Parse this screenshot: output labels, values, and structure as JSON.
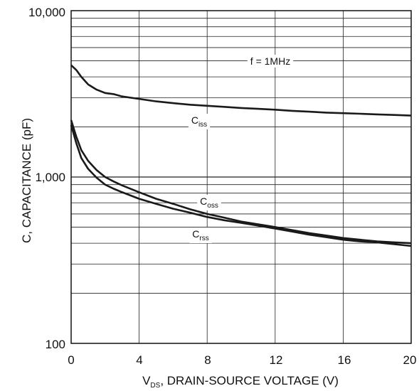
{
  "chart_data": {
    "type": "line",
    "title": "",
    "xlabel_main": "V",
    "xlabel_sub": "DS",
    "xlabel_rest": ", DRAIN-SOURCE VOLTAGE (V)",
    "ylabel": "C, CAPACITANCE (pF)",
    "xlim": [
      0,
      20
    ],
    "ylim": [
      100,
      10000
    ],
    "y_scale": "log",
    "grid": true,
    "x_ticks": [
      0,
      4,
      8,
      12,
      16,
      20
    ],
    "x_tick_labels": [
      "0",
      "4",
      "8",
      "12",
      "16",
      "20"
    ],
    "y_ticks": [
      100,
      1000,
      10000
    ],
    "y_tick_labels": [
      "100",
      "1,000",
      "10,000"
    ],
    "annotation": "f = 1MHz",
    "series": [
      {
        "name_main": "C",
        "name_sub": "iss",
        "color": "#1a1a1a",
        "x": [
          0,
          0.3,
          0.6,
          1,
          1.5,
          2,
          2.5,
          3,
          4,
          5,
          6,
          7,
          8,
          9,
          10,
          11,
          12,
          13,
          14,
          15,
          16,
          17,
          18,
          19,
          20
        ],
        "values": [
          4700,
          4400,
          4000,
          3600,
          3350,
          3200,
          3150,
          3050,
          2950,
          2850,
          2780,
          2720,
          2680,
          2640,
          2600,
          2570,
          2540,
          2500,
          2470,
          2440,
          2420,
          2400,
          2380,
          2360,
          2340
        ]
      },
      {
        "name_main": "C",
        "name_sub": "oss",
        "color": "#1a1a1a",
        "x": [
          0,
          0.3,
          0.6,
          1,
          1.5,
          2,
          2.5,
          3,
          4,
          5,
          6,
          7,
          8,
          9,
          10,
          11,
          12,
          13,
          14,
          15,
          16,
          17,
          18,
          19,
          20
        ],
        "values": [
          2200,
          1750,
          1450,
          1250,
          1100,
          1000,
          940,
          890,
          810,
          740,
          690,
          640,
          600,
          570,
          540,
          520,
          500,
          480,
          460,
          445,
          430,
          420,
          410,
          405,
          400
        ]
      },
      {
        "name_main": "C",
        "name_sub": "rss",
        "color": "#1a1a1a",
        "x": [
          0,
          0.3,
          0.6,
          1,
          1.5,
          2,
          2.5,
          3,
          4,
          5,
          6,
          7,
          8,
          9,
          10,
          11,
          12,
          13,
          14,
          15,
          16,
          17,
          18,
          19,
          20
        ],
        "values": [
          2050,
          1600,
          1300,
          1120,
          990,
          900,
          850,
          810,
          740,
          690,
          645,
          610,
          575,
          550,
          530,
          510,
          490,
          470,
          450,
          435,
          420,
          410,
          405,
          395,
          385
        ]
      }
    ]
  }
}
